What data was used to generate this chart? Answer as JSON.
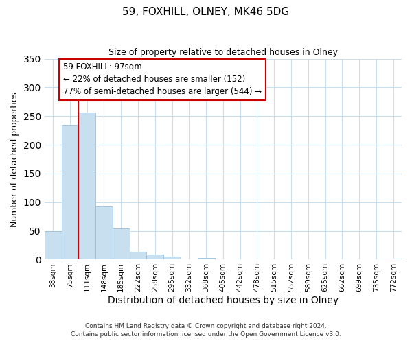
{
  "title": "59, FOXHILL, OLNEY, MK46 5DG",
  "subtitle": "Size of property relative to detached houses in Olney",
  "xlabel": "Distribution of detached houses by size in Olney",
  "ylabel": "Number of detached properties",
  "bar_labels": [
    "38sqm",
    "75sqm",
    "111sqm",
    "148sqm",
    "185sqm",
    "222sqm",
    "258sqm",
    "295sqm",
    "332sqm",
    "368sqm",
    "405sqm",
    "442sqm",
    "478sqm",
    "515sqm",
    "552sqm",
    "589sqm",
    "625sqm",
    "662sqm",
    "699sqm",
    "735sqm",
    "772sqm"
  ],
  "bar_values": [
    49,
    235,
    256,
    93,
    54,
    14,
    9,
    5,
    0,
    3,
    0,
    0,
    0,
    0,
    0,
    0,
    0,
    0,
    0,
    0,
    2
  ],
  "bar_color": "#c8dff0",
  "bar_edge_color": "#9bbfd8",
  "ylim": [
    0,
    350
  ],
  "yticks": [
    0,
    50,
    100,
    150,
    200,
    250,
    300,
    350
  ],
  "property_line_idx": 2,
  "property_line_color": "#cc0000",
  "annotation_line1": "59 FOXHILL: 97sqm",
  "annotation_line2": "← 22% of detached houses are smaller (152)",
  "annotation_line3": "77% of semi-detached houses are larger (544) →",
  "annotation_box_color": "#ffffff",
  "annotation_box_edge": "#cc0000",
  "footnote1": "Contains HM Land Registry data © Crown copyright and database right 2024.",
  "footnote2": "Contains public sector information licensed under the Open Government Licence v3.0.",
  "background_color": "#ffffff",
  "grid_color": "#c8dff0"
}
